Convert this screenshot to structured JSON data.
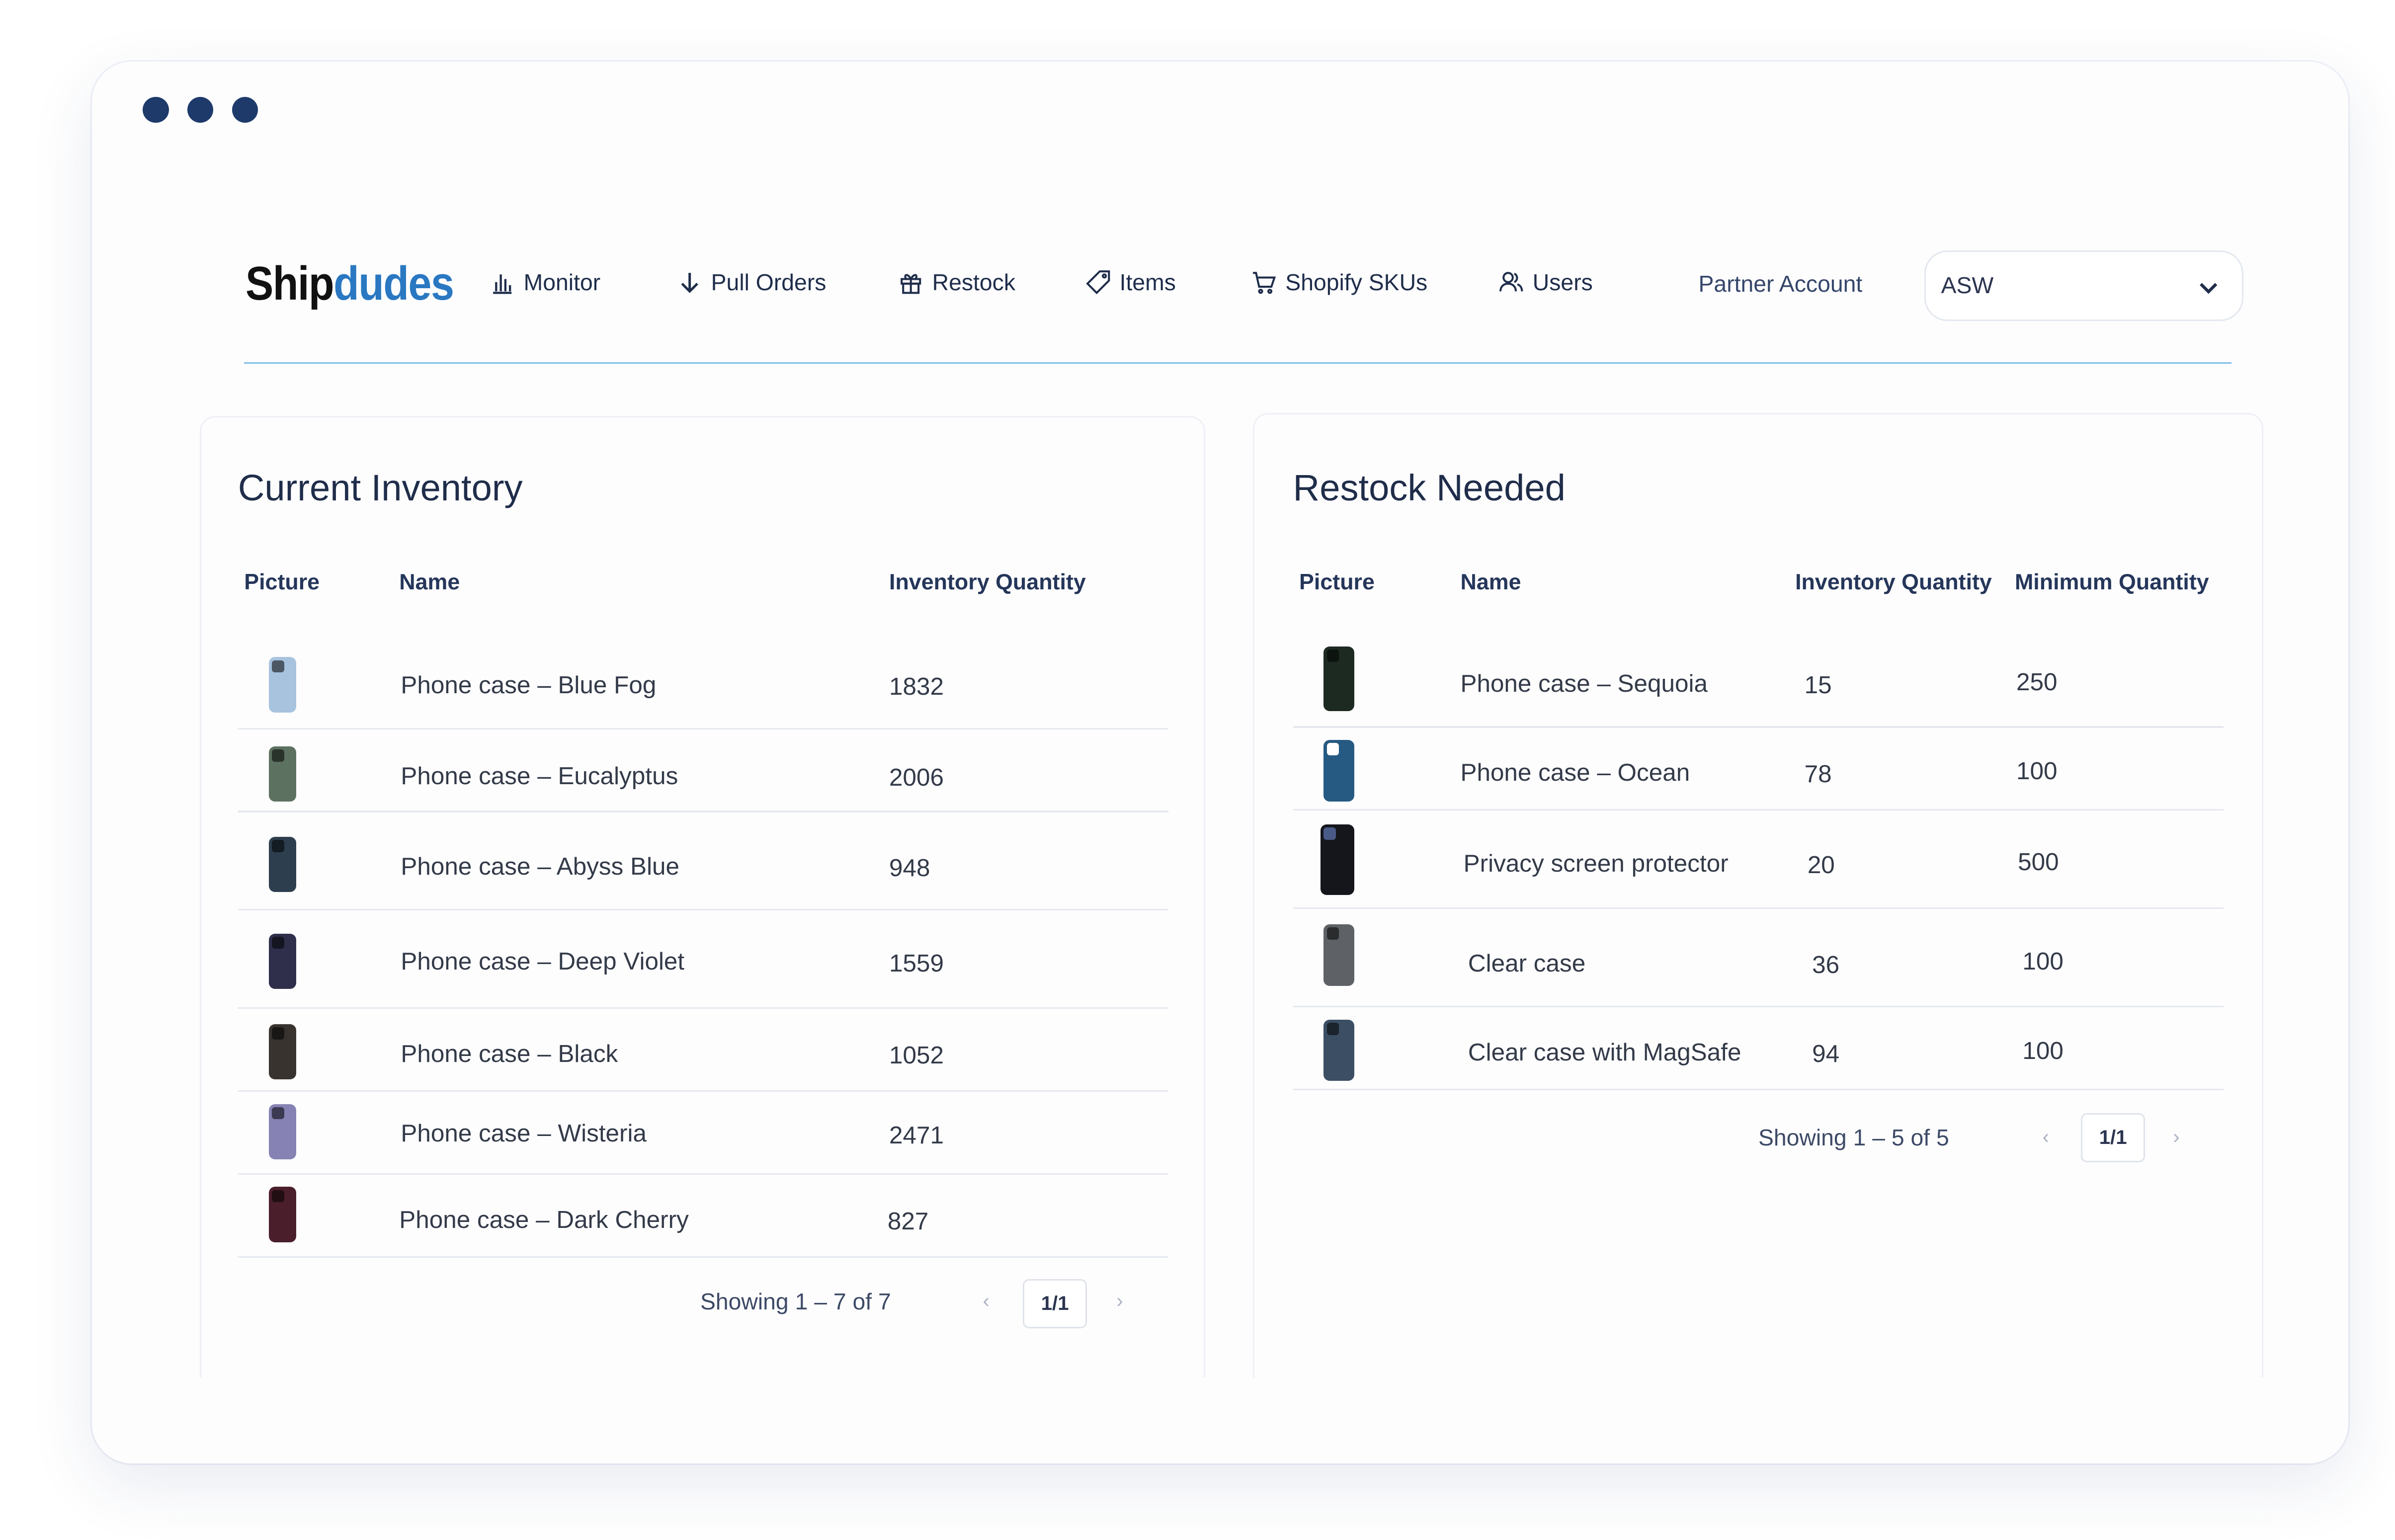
{
  "app": {
    "logo_part1": "Ship",
    "logo_part2": "dudes",
    "brand_color": "#2a78c2",
    "accent_line_color": "#7fbde6"
  },
  "nav": {
    "items": [
      {
        "label": "Monitor",
        "icon": "bar-chart-icon"
      },
      {
        "label": "Pull Orders",
        "icon": "arrow-down-icon"
      },
      {
        "label": "Restock",
        "icon": "gift-icon"
      },
      {
        "label": "Items",
        "icon": "tag-icon"
      },
      {
        "label": "Shopify SKUs",
        "icon": "cart-icon"
      },
      {
        "label": "Users",
        "icon": "users-icon"
      }
    ],
    "partner_label": "Partner Account",
    "partner_select_value": "ASW"
  },
  "inventory": {
    "title": "Current Inventory",
    "columns": [
      "Picture",
      "Name",
      "Inventory Quantity"
    ],
    "rows": [
      {
        "name": "Phone case – Blue Fog",
        "qty": "1832",
        "color": "#a7c3de"
      },
      {
        "name": "Phone case – Eucalyptus",
        "qty": "2006",
        "color": "#5d7161"
      },
      {
        "name": "Phone case – Abyss Blue",
        "qty": "948",
        "color": "#2d3e4e"
      },
      {
        "name": "Phone case – Deep Violet",
        "qty": "1559",
        "color": "#2f2f4c"
      },
      {
        "name": "Phone case – Black",
        "qty": "1052",
        "color": "#38332f"
      },
      {
        "name": "Phone case – Wisteria",
        "qty": "2471",
        "color": "#8682b3"
      },
      {
        "name": "Phone case – Dark Cherry",
        "qty": "827",
        "color": "#4a1f2b"
      }
    ],
    "pager": {
      "showing": "Showing 1 – 7 of 7",
      "page": "1/1",
      "prev": "‹",
      "next": "›"
    }
  },
  "restock": {
    "title": "Restock Needed",
    "columns": [
      "Picture",
      "Name",
      "Inventory Quantity",
      "Minimum Quantity"
    ],
    "rows": [
      {
        "name": "Phone case – Sequoia",
        "qty": "15",
        "min": "250",
        "color": "#1d2a22"
      },
      {
        "name": "Phone case – Ocean",
        "qty": "78",
        "min": "100",
        "color": "#265a82"
      },
      {
        "name": "Privacy screen protector",
        "qty": "20",
        "min": "500",
        "color": "#14161c"
      },
      {
        "name": "Clear case",
        "qty": "36",
        "min": "100",
        "color": "#5e6266"
      },
      {
        "name": "Clear case with MagSafe",
        "qty": "94",
        "min": "100",
        "color": "#3c4e64"
      }
    ],
    "pager": {
      "showing": "Showing 1 – 5 of 5",
      "page": "1/1",
      "prev": "‹",
      "next": "›"
    }
  }
}
